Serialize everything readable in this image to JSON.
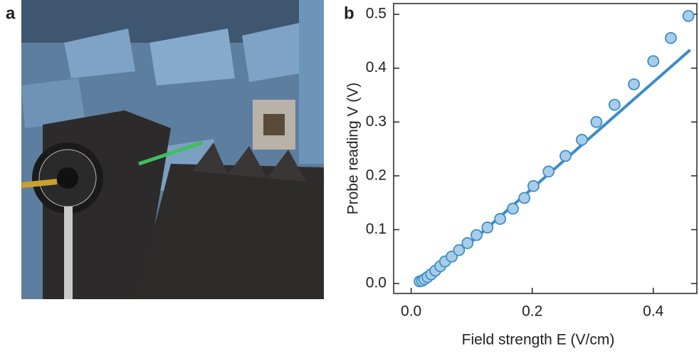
{
  "panel_labels": [
    "a",
    "b"
  ],
  "chart_data": {
    "type": "scatter",
    "xlabel": "Field strength E (V/cm)",
    "ylabel": "Probe reading V (V)",
    "xlim": [
      -0.029,
      0.472
    ],
    "ylim": [
      -0.0185,
      0.52
    ],
    "xticks": [
      {
        "value": 0,
        "label": "0.0"
      },
      0.2,
      0.4
    ],
    "yticks": [
      {
        "value": 0,
        "label": "0.0"
      },
      0.1,
      0.2,
      0.3,
      0.4,
      0.5
    ],
    "series": [
      {
        "type": "scatter",
        "color": "#a9cde9",
        "edge": "#3d8ec8",
        "x": [
          0.014,
          0.018,
          0.022,
          0.027,
          0.033,
          0.04,
          0.048,
          0.056,
          0.067,
          0.079,
          0.093,
          0.108,
          0.126,
          0.147,
          0.168,
          0.187,
          0.202,
          0.227,
          0.255,
          0.282,
          0.306,
          0.336,
          0.368,
          0.4,
          0.429,
          0.458
        ],
        "values": [
          0.004,
          0.005,
          0.008,
          0.012,
          0.017,
          0.024,
          0.032,
          0.041,
          0.05,
          0.062,
          0.075,
          0.09,
          0.104,
          0.12,
          0.139,
          0.159,
          0.181,
          0.208,
          0.237,
          0.267,
          0.3,
          0.332,
          0.37,
          0.413,
          0.456,
          0.497
        ]
      },
      {
        "type": "line",
        "color": "#3a8cc8",
        "x": [
          0.015,
          0.05,
          0.1,
          0.461
        ],
        "values": [
          0.004,
          0.035,
          0.078,
          0.434
        ]
      }
    ]
  }
}
